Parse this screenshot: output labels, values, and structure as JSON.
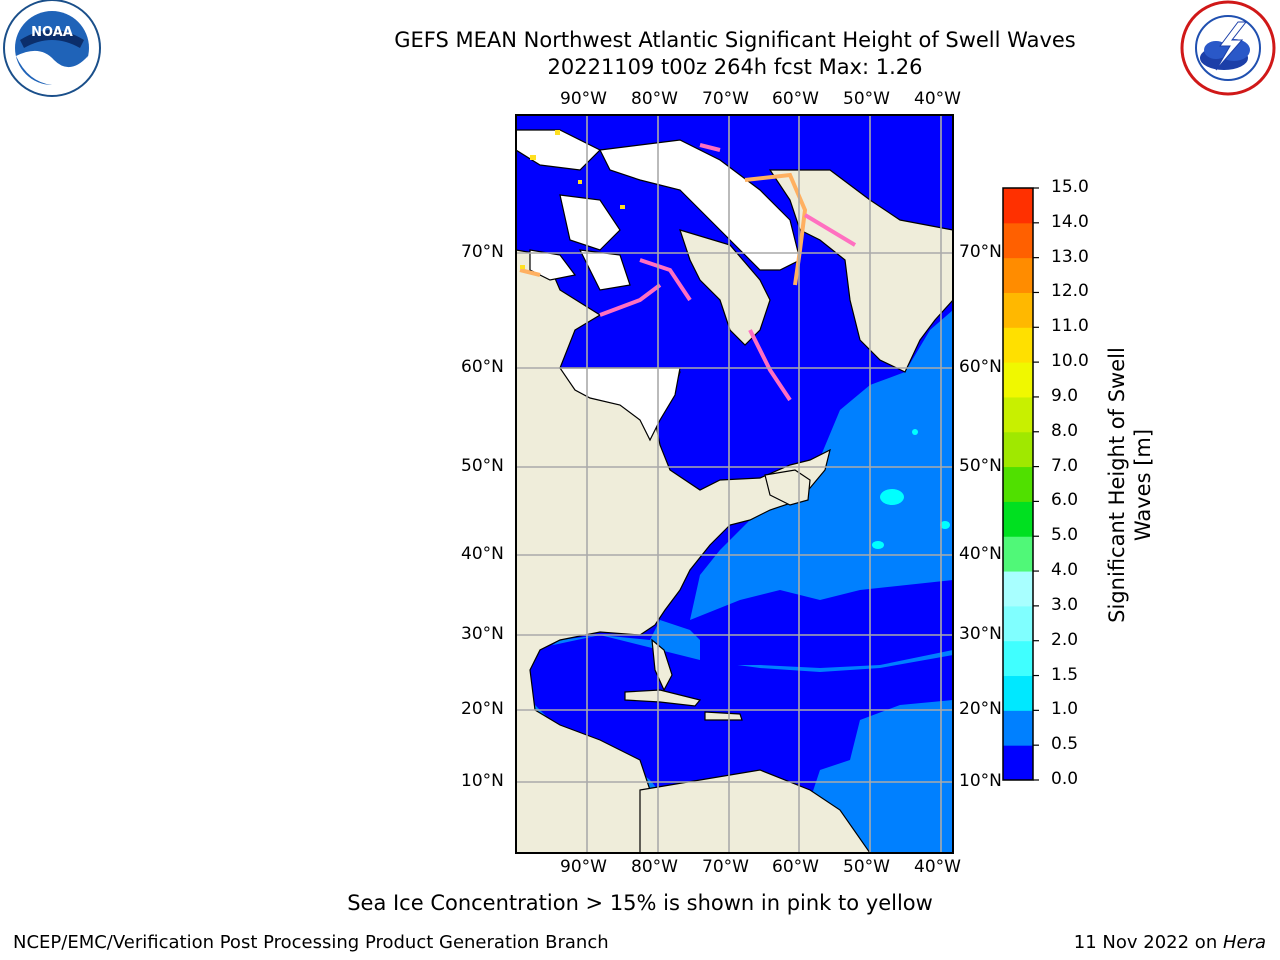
{
  "header": {
    "title_line1": "GEFS MEAN Northwest Atlantic Significant Height of Swell Waves",
    "title_line2": "20221109 t00z 264h fcst   Max: 1.26"
  },
  "logos": {
    "left": {
      "name": "noaa-logo",
      "text": "NOAA"
    },
    "right": {
      "name": "nws-logo"
    }
  },
  "map": {
    "lon_labels": [
      "90°W",
      "80°W",
      "70°W",
      "60°W",
      "50°W",
      "40°W"
    ],
    "lat_labels": [
      "70°N",
      "60°N",
      "50°N",
      "40°N",
      "30°N",
      "20°N",
      "10°N"
    ],
    "colors": {
      "land": "#efedda",
      "ice": "#ffffff",
      "swell_0_0_5": "#0000ff",
      "swell_0_5_1_0": "#0080ff",
      "swell_1_0_1_5": "#00ffff",
      "sea_ice_pink": "#ff70c0",
      "sea_ice_orange": "#ffb060",
      "sea_ice_yellow": "#ffe020",
      "grid": "#aaaaaa"
    }
  },
  "colorbar": {
    "label_line1": "Significant Height of Swell",
    "label_line2": "Waves [m]",
    "ticks": [
      "0.0",
      "0.5",
      "1.0",
      "1.5",
      "2.0",
      "3.0",
      "4.0",
      "5.0",
      "6.0",
      "7.0",
      "8.0",
      "9.0",
      "10.0",
      "11.0",
      "12.0",
      "13.0",
      "14.0",
      "15.0"
    ],
    "colors": [
      "#0000ff",
      "#0080ff",
      "#00e8ff",
      "#40ffff",
      "#80ffff",
      "#a8ffff",
      "#50f878",
      "#00e020",
      "#50e000",
      "#a0e800",
      "#c8f000",
      "#f0f800",
      "#ffe000",
      "#ffb800",
      "#ff8c00",
      "#ff6000",
      "#ff3000",
      "#ff0000"
    ]
  },
  "footer": {
    "caption": "Sea Ice Concentration > 15% is shown in pink to yellow",
    "left": "NCEP/EMC/Verification Post Processing Product Generation Branch",
    "right_prefix": "11 Nov 2022 on ",
    "right_machine": "Hera"
  }
}
